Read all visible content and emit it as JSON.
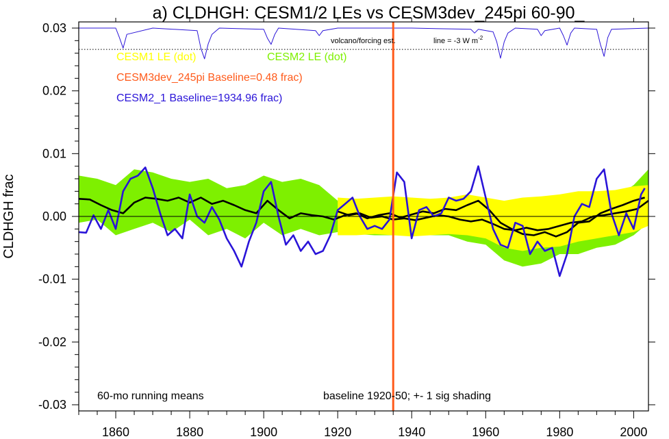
{
  "chart_data": {
    "type": "line",
    "title": "a) CLDHGH: CESM1/2 LEs vs CESM3dev_245pi 60-90_",
    "ylabel": "CLDHGH frac",
    "xlabel": "",
    "xlim": [
      1850,
      2004
    ],
    "ylim": [
      -0.03,
      0.03
    ],
    "x_ticks": [
      1860,
      1880,
      1900,
      1920,
      1940,
      1960,
      1980,
      2000
    ],
    "x_tick_labels": [
      "1860",
      "1880",
      "1900",
      "1920",
      "1940",
      "1960",
      "1980",
      "2000"
    ],
    "y_ticks": [
      -0.03,
      -0.02,
      -0.01,
      0.0,
      0.01,
      0.02,
      0.03
    ],
    "y_tick_labels": [
      "-0.03",
      "-0.02",
      "-0.01",
      "0.00",
      "0.01",
      "0.02",
      "0.03"
    ],
    "legend": {
      "cesm1": {
        "label": "CESM1 LE (dot)",
        "color": "#ffff00"
      },
      "cesm2": {
        "label": "CESM2 LE (dot)",
        "color": "#7ef000"
      },
      "cesm3": {
        "label": "CESM3dev_245pi Baseline=0.48 frac)",
        "color": "#ff5a1a"
      },
      "cesm2_1": {
        "label": "CESM2_1 Baseline=1934.96 frac)",
        "color": "#2a14d8"
      }
    },
    "annotations": {
      "volcano": "volcano/forcing est.",
      "line_note": "line = -3 W m",
      "line_note_sup": "-2",
      "running": "60-mo running means",
      "baseline": "baseline 1920-50; +- 1 sig shading"
    },
    "vertical_marker_x": 1935,
    "volcano_reference_y": 0.0266,
    "series": [
      {
        "name": "CESM2 LE (dot)",
        "kind": "band",
        "color": "#7ef000",
        "x": [
          1850,
          1855,
          1860,
          1865,
          1870,
          1875,
          1880,
          1885,
          1890,
          1895,
          1900,
          1905,
          1910,
          1915,
          1920,
          1925,
          1930,
          1935,
          1940,
          1945,
          1950,
          1955,
          1960,
          1965,
          1970,
          1975,
          1980,
          1985,
          1990,
          1995,
          2000,
          2004
        ],
        "upper": [
          0.0065,
          0.006,
          0.005,
          0.0075,
          0.007,
          0.006,
          0.0055,
          0.006,
          0.0045,
          0.005,
          0.0065,
          0.0055,
          0.006,
          0.005,
          0.0025,
          0.0028,
          0.0025,
          0.0022,
          0.003,
          0.0022,
          0.0018,
          0.0015,
          0.002,
          0.0,
          -0.0005,
          -0.0005,
          0.0,
          0.0005,
          0.002,
          0.003,
          0.005,
          0.0075
        ],
        "lower": [
          -0.001,
          -0.0005,
          -0.003,
          -0.002,
          -0.001,
          -0.0025,
          -0.0005,
          -0.003,
          -0.002,
          -0.0035,
          -0.001,
          -0.003,
          -0.002,
          -0.003,
          -0.0025,
          -0.0028,
          -0.003,
          -0.003,
          -0.003,
          -0.003,
          -0.003,
          -0.004,
          -0.0045,
          -0.007,
          -0.008,
          -0.0075,
          -0.006,
          -0.006,
          -0.005,
          -0.0045,
          -0.003,
          -0.001
        ]
      },
      {
        "name": "CESM1 LE (dot)",
        "kind": "band",
        "color": "#ffff00",
        "x": [
          1920,
          1925,
          1930,
          1935,
          1940,
          1945,
          1950,
          1955,
          1960,
          1965,
          1970,
          1975,
          1980,
          1985,
          1990,
          1995,
          2000,
          2004
        ],
        "upper": [
          0.003,
          0.0028,
          0.003,
          0.0032,
          0.003,
          0.0028,
          0.003,
          0.0035,
          0.003,
          0.0025,
          0.003,
          0.0032,
          0.0035,
          0.004,
          0.004,
          0.0042,
          0.0048,
          0.005
        ],
        "lower": [
          -0.003,
          -0.003,
          -0.0028,
          -0.003,
          -0.0032,
          -0.003,
          -0.0028,
          -0.003,
          -0.0035,
          -0.005,
          -0.0055,
          -0.005,
          -0.0048,
          -0.004,
          -0.0035,
          -0.003,
          -0.0025,
          -0.0015
        ]
      },
      {
        "name": "CESM2 LE mean",
        "kind": "line",
        "color": "#000000",
        "x": [
          1850,
          1853,
          1856,
          1859,
          1862,
          1865,
          1868,
          1871,
          1874,
          1877,
          1880,
          1883,
          1886,
          1889,
          1892,
          1895,
          1898,
          1901,
          1904,
          1907,
          1910,
          1913,
          1916,
          1919,
          1922,
          1925,
          1928,
          1931,
          1934,
          1937,
          1940,
          1943,
          1946,
          1949,
          1952,
          1955,
          1958,
          1961,
          1964,
          1967,
          1970,
          1973,
          1976,
          1979,
          1982,
          1985,
          1988,
          1991,
          1994,
          1997,
          2000,
          2003
        ],
        "y": [
          0.0028,
          0.0027,
          0.0018,
          0.001,
          0.0005,
          0.0022,
          0.003,
          0.0028,
          0.0025,
          0.003,
          0.0022,
          0.003,
          0.002,
          0.0025,
          0.0018,
          0.001,
          0.0005,
          0.0025,
          0.001,
          -0.0003,
          0.0005,
          0.0002,
          0.0,
          -0.0005,
          0.0002,
          0.0005,
          -0.0003,
          0.0002,
          0.0005,
          -0.0002,
          0.0003,
          0.0008,
          0.0005,
          0.0012,
          0.001,
          0.0018,
          0.0025,
          0.001,
          -0.001,
          -0.002,
          -0.0028,
          -0.003,
          -0.0025,
          -0.0032,
          -0.0025,
          -0.001,
          -0.0008,
          0.0005,
          0.0012,
          0.0018,
          0.0025,
          0.003
        ]
      },
      {
        "name": "CESM1 LE mean",
        "kind": "line",
        "color": "#000000",
        "x": [
          1920,
          1923,
          1926,
          1929,
          1932,
          1935,
          1938,
          1941,
          1944,
          1947,
          1950,
          1953,
          1956,
          1959,
          1962,
          1965,
          1968,
          1971,
          1974,
          1977,
          1980,
          1983,
          1986,
          1989,
          1992,
          1995,
          1998,
          2001,
          2004
        ],
        "y": [
          0.0008,
          0.0002,
          0.0005,
          -0.0002,
          0.0,
          -0.0005,
          -0.0003,
          -0.0006,
          -0.0002,
          0.0002,
          0.0,
          -0.0005,
          -0.0008,
          -0.0005,
          -0.0012,
          -0.002,
          -0.0022,
          -0.0018,
          -0.0022,
          -0.002,
          -0.0015,
          -0.001,
          -0.0008,
          0.0,
          0.0002,
          0.0005,
          0.0008,
          0.0012,
          0.0025
        ]
      },
      {
        "name": "CESM2_1",
        "kind": "line",
        "color": "#2a14d8",
        "x": [
          1850,
          1852,
          1854,
          1856,
          1858,
          1860,
          1862,
          1864,
          1866,
          1868,
          1870,
          1872,
          1874,
          1876,
          1878,
          1880,
          1882,
          1884,
          1886,
          1888,
          1890,
          1892,
          1894,
          1896,
          1898,
          1900,
          1902,
          1904,
          1906,
          1908,
          1910,
          1912,
          1914,
          1916,
          1918,
          1920,
          1922,
          1924,
          1926,
          1928,
          1930,
          1932,
          1934,
          1936,
          1938,
          1940,
          1942,
          1944,
          1946,
          1948,
          1950,
          1952,
          1954,
          1956,
          1958,
          1960,
          1962,
          1964,
          1966,
          1968,
          1970,
          1972,
          1974,
          1976,
          1978,
          1980,
          1982,
          1984,
          1986,
          1988,
          1990,
          1992,
          1994,
          1996,
          1998,
          2000,
          2002,
          2003
        ],
        "y": [
          -0.0025,
          -0.0026,
          0.0002,
          -0.002,
          0.001,
          -0.002,
          0.004,
          0.006,
          0.0065,
          0.0078,
          0.0045,
          0.0005,
          -0.003,
          -0.002,
          -0.0035,
          0.0035,
          0.0,
          -0.001,
          0.0015,
          -0.0005,
          -0.0035,
          -0.0055,
          -0.008,
          -0.004,
          -0.001,
          0.004,
          0.0055,
          0.0,
          -0.0045,
          -0.003,
          -0.0055,
          -0.004,
          -0.006,
          -0.0055,
          -0.003,
          0.001,
          0.002,
          0.003,
          0.0,
          -0.002,
          -0.0015,
          -0.002,
          -0.0005,
          0.007,
          0.0055,
          -0.0035,
          0.001,
          0.0015,
          0.0,
          0.0005,
          0.003,
          0.0025,
          0.0028,
          0.004,
          0.008,
          0.003,
          -0.002,
          -0.0045,
          -0.005,
          -0.001,
          -0.0015,
          -0.006,
          -0.004,
          -0.0055,
          -0.005,
          -0.0095,
          -0.006,
          0.0,
          0.002,
          0.0015,
          0.006,
          0.0075,
          0.0005,
          -0.003,
          0.0005,
          -0.002,
          0.0035,
          0.0045
        ]
      },
      {
        "name": "volcano/forcing est.",
        "kind": "line",
        "color": "#2a14d8",
        "x": [
          1850,
          1860,
          1861,
          1862,
          1863,
          1870,
          1882,
          1883,
          1884,
          1885,
          1886,
          1888,
          1900,
          1901,
          1902,
          1903,
          1904,
          1914,
          1915,
          1916,
          1920,
          1930,
          1940,
          1956,
          1957,
          1958,
          1962,
          1963,
          1964,
          1965,
          1966,
          1968,
          1974,
          1975,
          1976,
          1980,
          1981,
          1982,
          1983,
          1984,
          1990,
          1991,
          1992,
          1993,
          1994,
          2004
        ],
        "y": [
          0.03,
          0.03,
          0.0285,
          0.0268,
          0.029,
          0.03,
          0.0296,
          0.0268,
          0.0251,
          0.0275,
          0.029,
          0.03,
          0.0298,
          0.0284,
          0.0274,
          0.029,
          0.03,
          0.0296,
          0.0288,
          0.0296,
          0.03,
          0.03,
          0.03,
          0.0298,
          0.0292,
          0.0298,
          0.0294,
          0.0278,
          0.0252,
          0.0278,
          0.0292,
          0.03,
          0.0298,
          0.0288,
          0.0296,
          0.03,
          0.0288,
          0.0273,
          0.0292,
          0.03,
          0.0298,
          0.0274,
          0.0255,
          0.0285,
          0.0298,
          0.03
        ]
      }
    ]
  }
}
